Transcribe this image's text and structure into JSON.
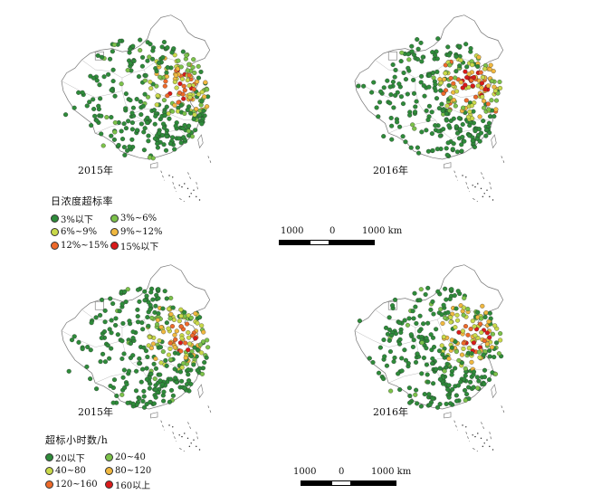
{
  "panels": [
    {
      "year_label": "2015年"
    },
    {
      "year_label": "2016年"
    },
    {
      "year_label": "2015年"
    },
    {
      "year_label": "2016年"
    }
  ],
  "legend_top": {
    "title": "日浓度超标率",
    "items": [
      {
        "label": "3%以下",
        "color": "#2e8b3a"
      },
      {
        "label": "3%~6%",
        "color": "#7cc24a"
      },
      {
        "label": "6%~9%",
        "color": "#c9d94a"
      },
      {
        "label": "9%~12%",
        "color": "#f0b840"
      },
      {
        "label": "12%~15%",
        "color": "#ee6a2a"
      },
      {
        "label": "15%以下",
        "color": "#d91a1a"
      }
    ]
  },
  "legend_bottom": {
    "title": "超标小时数/h",
    "items": [
      {
        "label": "20以下",
        "color": "#2e8b3a"
      },
      {
        "label": "20~40",
        "color": "#7cc24a"
      },
      {
        "label": "40~80",
        "color": "#c9d94a"
      },
      {
        "label": "80~120",
        "color": "#f0b840"
      },
      {
        "label": "120~160",
        "color": "#ee6a2a"
      },
      {
        "label": "160以上",
        "color": "#d91a1a"
      }
    ]
  },
  "scalebar_top": {
    "left": "1000",
    "mid": "0",
    "right": "1000 km"
  },
  "scalebar_bottom": {
    "left": "1000",
    "mid": "0",
    "right": "1000 km"
  }
}
